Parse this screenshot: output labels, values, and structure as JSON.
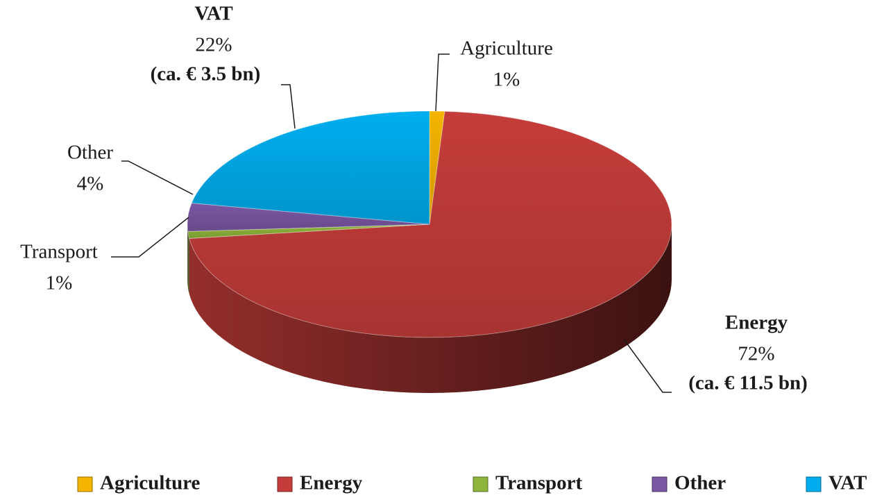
{
  "chart_data": {
    "type": "pie",
    "categories": [
      "Agriculture",
      "Energy",
      "Transport",
      "Other",
      "VAT"
    ],
    "values": [
      1,
      72,
      1,
      4,
      22
    ],
    "value_labels": [
      "1%",
      "72%",
      "1%",
      "4%",
      "22%"
    ],
    "colors": [
      "#f5b400",
      "#c53d3a",
      "#8fb53c",
      "#7b57a3",
      "#00aeef"
    ],
    "annotations": [
      {
        "category": "Energy",
        "text": "(ca. € 11.5 bn)"
      },
      {
        "category": "VAT",
        "text": "(ca. € 3.5 bn)"
      }
    ],
    "legend": "bottom"
  }
}
